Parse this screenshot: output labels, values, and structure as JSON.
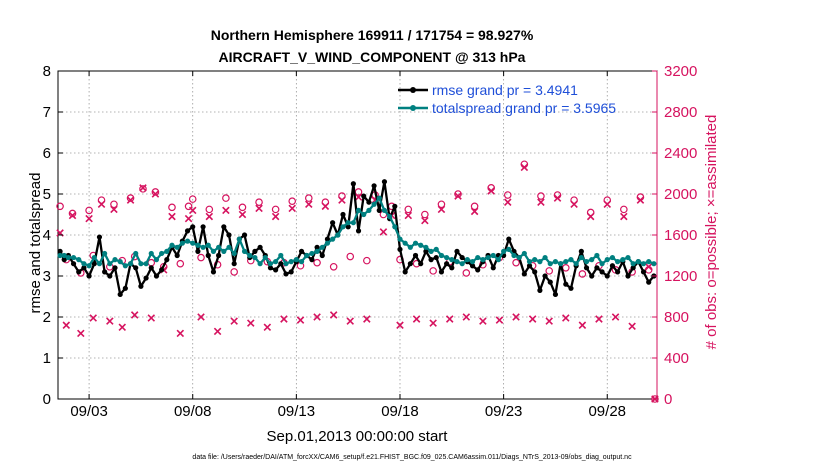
{
  "colors": {
    "rmse": "#000000",
    "spread": "#008080",
    "obs": "#d6135f",
    "legend_text": "#1f4fd8",
    "axis": "#000000"
  },
  "chart_data": {
    "type": "line",
    "title_line1": "Northern Hemisphere 169911 / 171754 = 98.927%",
    "title_line2": "AIRCRAFT_V_WIND_COMPONENT @ 313 hPa",
    "xlabel": "Sep.01,2013 00:00:00 start",
    "ylabel_left": "rmse and totalspread",
    "ylabel_right": "# of obs: o=possible; ×=assimilated",
    "footer": "data file: /Users/raeder/DAI/ATM_forcXX/CAM6_setup/f.e21.FHIST_BGC.f09_025.CAM6assim.011/Diags_NTrS_2013-09/obs_diag_output.nc",
    "x_range": [
      1.5,
      30.4
    ],
    "x_ticks": [
      3,
      8,
      13,
      18,
      23,
      28
    ],
    "x_tick_labels": [
      "09/03",
      "09/08",
      "09/13",
      "09/18",
      "09/23",
      "09/28"
    ],
    "ylim_left": [
      0,
      8
    ],
    "yticks_left": [
      0,
      1,
      2,
      3,
      4,
      5,
      6,
      7,
      8
    ],
    "ylim_right": [
      0,
      3200
    ],
    "yticks_right": [
      0,
      400,
      800,
      1200,
      1600,
      2000,
      2400,
      2800,
      3200
    ],
    "legend": [
      "rmse grand pr = 3.4941",
      "totalspread grand pr = 3.5965"
    ],
    "legend_position": "top-right",
    "series": [
      {
        "name": "rmse",
        "axis": "left",
        "x": [
          1.6,
          1.8,
          2.0,
          2.25,
          2.5,
          2.75,
          3.0,
          3.25,
          3.5,
          3.75,
          4.0,
          4.25,
          4.5,
          4.75,
          5.0,
          5.25,
          5.5,
          5.75,
          6.0,
          6.25,
          6.5,
          6.75,
          7.0,
          7.25,
          7.5,
          7.75,
          8.0,
          8.25,
          8.5,
          8.75,
          9.0,
          9.25,
          9.5,
          9.75,
          10.0,
          10.25,
          10.5,
          10.75,
          11.0,
          11.25,
          11.5,
          11.75,
          12.0,
          12.25,
          12.5,
          12.75,
          13.0,
          13.25,
          13.5,
          13.75,
          14.0,
          14.25,
          14.5,
          14.75,
          15.0,
          15.25,
          15.5,
          15.75,
          16.0,
          16.25,
          16.5,
          16.75,
          17.0,
          17.25,
          17.5,
          17.75,
          18.0,
          18.25,
          18.5,
          18.75,
          19.0,
          19.25,
          19.5,
          19.75,
          20.0,
          20.25,
          20.5,
          20.75,
          21.0,
          21.25,
          21.5,
          21.75,
          22.0,
          22.25,
          22.5,
          22.75,
          23.0,
          23.25,
          23.5,
          23.75,
          24.0,
          24.25,
          24.5,
          24.75,
          25.0,
          25.25,
          25.5,
          25.75,
          26.0,
          26.25,
          26.5,
          26.75,
          27.0,
          27.25,
          27.5,
          27.75,
          28.0,
          28.25,
          28.5,
          28.75,
          29.0,
          29.25,
          29.5,
          29.75,
          30.0,
          30.25
        ],
        "values": [
          3.6,
          3.4,
          3.5,
          3.3,
          3.1,
          3.2,
          3.0,
          3.3,
          3.95,
          3.1,
          3.0,
          3.2,
          2.55,
          2.7,
          3.3,
          3.2,
          2.75,
          2.95,
          3.2,
          3.0,
          3.15,
          3.4,
          3.7,
          3.5,
          3.85,
          4.1,
          4.2,
          3.6,
          4.2,
          3.5,
          3.1,
          3.5,
          4.2,
          4.0,
          3.3,
          3.9,
          4.0,
          3.45,
          3.6,
          3.7,
          3.5,
          3.2,
          3.15,
          3.3,
          3.05,
          3.1,
          3.35,
          3.6,
          3.5,
          3.4,
          3.7,
          3.5,
          3.9,
          4.3,
          4.0,
          4.5,
          4.2,
          5.25,
          4.1,
          4.95,
          4.8,
          5.2,
          4.6,
          5.3,
          4.4,
          4.7,
          3.65,
          3.1,
          3.3,
          3.5,
          3.3,
          3.6,
          3.4,
          3.45,
          3.1,
          3.3,
          3.2,
          3.6,
          3.45,
          3.35,
          3.25,
          3.15,
          3.35,
          3.5,
          3.2,
          3.5,
          3.5,
          3.9,
          3.6,
          3.45,
          3.05,
          3.25,
          3.1,
          2.65,
          3.0,
          2.85,
          2.55,
          3.3,
          2.8,
          2.7,
          3.25,
          3.6,
          3.2,
          3.0,
          3.2,
          3.1,
          3.0,
          3.25,
          3.1,
          3.35,
          3.0,
          3.2,
          3.35,
          3.1,
          2.85,
          3.0
        ]
      },
      {
        "name": "totalspread",
        "axis": "left",
        "x": [
          1.6,
          1.8,
          2.0,
          2.25,
          2.5,
          2.75,
          3.0,
          3.25,
          3.5,
          3.75,
          4.0,
          4.25,
          4.5,
          4.75,
          5.0,
          5.25,
          5.5,
          5.75,
          6.0,
          6.25,
          6.5,
          6.75,
          7.0,
          7.25,
          7.5,
          7.75,
          8.0,
          8.25,
          8.5,
          8.75,
          9.0,
          9.25,
          9.5,
          9.75,
          10.0,
          10.25,
          10.5,
          10.75,
          11.0,
          11.25,
          11.5,
          11.75,
          12.0,
          12.25,
          12.5,
          12.75,
          13.0,
          13.25,
          13.5,
          13.75,
          14.0,
          14.25,
          14.5,
          14.75,
          15.0,
          15.25,
          15.5,
          15.75,
          16.0,
          16.25,
          16.5,
          16.75,
          17.0,
          17.25,
          17.5,
          17.75,
          18.0,
          18.25,
          18.5,
          18.75,
          19.0,
          19.25,
          19.5,
          19.75,
          20.0,
          20.25,
          20.5,
          20.75,
          21.0,
          21.25,
          21.5,
          21.75,
          22.0,
          22.25,
          22.5,
          22.75,
          23.0,
          23.25,
          23.5,
          23.75,
          24.0,
          24.25,
          24.5,
          24.75,
          25.0,
          25.25,
          25.5,
          25.75,
          26.0,
          26.25,
          26.5,
          26.75,
          27.0,
          27.25,
          27.5,
          27.75,
          28.0,
          28.25,
          28.5,
          28.75,
          29.0,
          29.25,
          29.5,
          29.75,
          30.0,
          30.25
        ],
        "values": [
          3.5,
          3.5,
          3.45,
          3.45,
          3.4,
          3.3,
          3.25,
          3.45,
          3.3,
          3.55,
          3.3,
          3.4,
          3.35,
          3.25,
          3.3,
          3.55,
          3.3,
          3.3,
          3.55,
          3.4,
          3.55,
          3.6,
          3.75,
          3.7,
          3.8,
          3.85,
          3.8,
          3.75,
          3.7,
          3.75,
          3.6,
          3.7,
          3.6,
          3.7,
          3.55,
          3.9,
          3.6,
          3.5,
          3.45,
          3.3,
          3.45,
          3.3,
          3.35,
          3.5,
          3.3,
          3.35,
          3.4,
          3.35,
          3.5,
          3.55,
          3.6,
          3.7,
          3.8,
          3.9,
          4.0,
          4.2,
          4.3,
          4.3,
          4.6,
          4.5,
          4.6,
          4.75,
          4.9,
          4.6,
          4.45,
          4.2,
          3.9,
          3.8,
          3.7,
          3.8,
          3.75,
          3.7,
          3.6,
          3.65,
          3.5,
          3.45,
          3.4,
          3.35,
          3.3,
          3.4,
          3.35,
          3.45,
          3.4,
          3.45,
          3.5,
          3.4,
          3.6,
          3.65,
          3.5,
          3.45,
          3.55,
          3.35,
          3.4,
          3.35,
          3.45,
          3.3,
          3.35,
          3.3,
          3.35,
          3.4,
          3.3,
          3.45,
          3.35,
          3.4,
          3.5,
          3.3,
          3.4,
          3.45,
          3.35,
          3.4,
          3.45,
          3.3,
          3.35,
          3.3,
          3.35,
          3.3
        ]
      },
      {
        "name": "obs_possible",
        "axis": "right",
        "marker": "o",
        "x": [
          1.6,
          1.9,
          2.2,
          2.6,
          3.0,
          3.2,
          3.6,
          4.0,
          4.2,
          4.6,
          5.0,
          5.2,
          5.6,
          6.0,
          6.2,
          6.6,
          7.0,
          7.4,
          7.8,
          8.0,
          8.4,
          8.8,
          9.2,
          9.6,
          10.0,
          10.4,
          10.8,
          11.2,
          11.6,
          12.0,
          12.4,
          12.8,
          13.2,
          13.6,
          14.0,
          14.4,
          14.8,
          15.2,
          15.6,
          16.0,
          16.4,
          16.8,
          17.2,
          17.6,
          18.0,
          18.4,
          18.8,
          19.2,
          19.6,
          20.0,
          20.4,
          20.8,
          21.2,
          21.6,
          22.0,
          22.4,
          22.8,
          23.2,
          23.6,
          24.0,
          24.4,
          24.8,
          25.2,
          25.6,
          26.0,
          26.4,
          26.8,
          27.2,
          27.6,
          28.0,
          28.4,
          28.8,
          29.2,
          29.6,
          30.0,
          30.3
        ],
        "values": [
          1880,
          1360,
          1810,
          1230,
          1840,
          1400,
          1940,
          1290,
          1900,
          1350,
          1960,
          1390,
          2050,
          1330,
          2020,
          1290,
          1870,
          1320,
          1880,
          1950,
          1380,
          1850,
          1310,
          1960,
          1240,
          1870,
          1350,
          1920,
          1340,
          1850,
          1330,
          1930,
          1300,
          1960,
          1330,
          1920,
          1290,
          1980,
          1390,
          2020,
          1350,
          1990,
          1800,
          1880,
          1360,
          1850,
          1320,
          1800,
          1250,
          1900,
          1340,
          2000,
          1230,
          1880,
          1310,
          2060,
          1380,
          1990,
          1330,
          2290,
          1300,
          1980,
          1250,
          1990,
          1280,
          1940,
          1220,
          1820,
          1300,
          1940,
          1260,
          1850,
          1240,
          1970,
          1260,
          0
        ]
      },
      {
        "name": "obs_assimilated",
        "axis": "right",
        "marker": "x",
        "x": [
          1.6,
          1.9,
          2.2,
          2.6,
          3.0,
          3.2,
          3.6,
          4.0,
          4.2,
          4.6,
          5.0,
          5.2,
          5.6,
          6.0,
          6.2,
          6.6,
          7.0,
          7.4,
          7.8,
          8.0,
          8.4,
          8.8,
          9.2,
          9.6,
          10.0,
          10.4,
          10.8,
          11.2,
          11.6,
          12.0,
          12.4,
          12.8,
          13.2,
          13.6,
          14.0,
          14.4,
          14.8,
          15.2,
          15.6,
          16.0,
          16.4,
          16.8,
          17.2,
          17.6,
          18.0,
          18.4,
          18.8,
          19.2,
          19.6,
          20.0,
          20.4,
          20.8,
          21.2,
          21.6,
          22.0,
          22.4,
          22.8,
          23.2,
          23.6,
          24.0,
          24.4,
          24.8,
          25.2,
          25.6,
          26.0,
          26.4,
          26.8,
          27.2,
          27.6,
          28.0,
          28.4,
          28.8,
          29.2,
          29.6,
          30.0,
          30.3
        ],
        "values": [
          1620,
          720,
          1790,
          640,
          1760,
          790,
          1900,
          760,
          1850,
          700,
          1940,
          820,
          2060,
          790,
          2000,
          1260,
          1780,
          640,
          1760,
          1840,
          800,
          1780,
          660,
          1840,
          760,
          1800,
          740,
          1860,
          700,
          1780,
          780,
          1860,
          770,
          1900,
          800,
          1880,
          820,
          1940,
          760,
          1970,
          780,
          1940,
          1630,
          1790,
          720,
          1790,
          780,
          1740,
          740,
          1850,
          780,
          1980,
          800,
          1830,
          760,
          2030,
          770,
          1920,
          800,
          2260,
          780,
          1920,
          760,
          1960,
          790,
          1900,
          720,
          1780,
          780,
          1900,
          800,
          1780,
          710,
          1940,
          1290,
          0
        ]
      }
    ]
  }
}
